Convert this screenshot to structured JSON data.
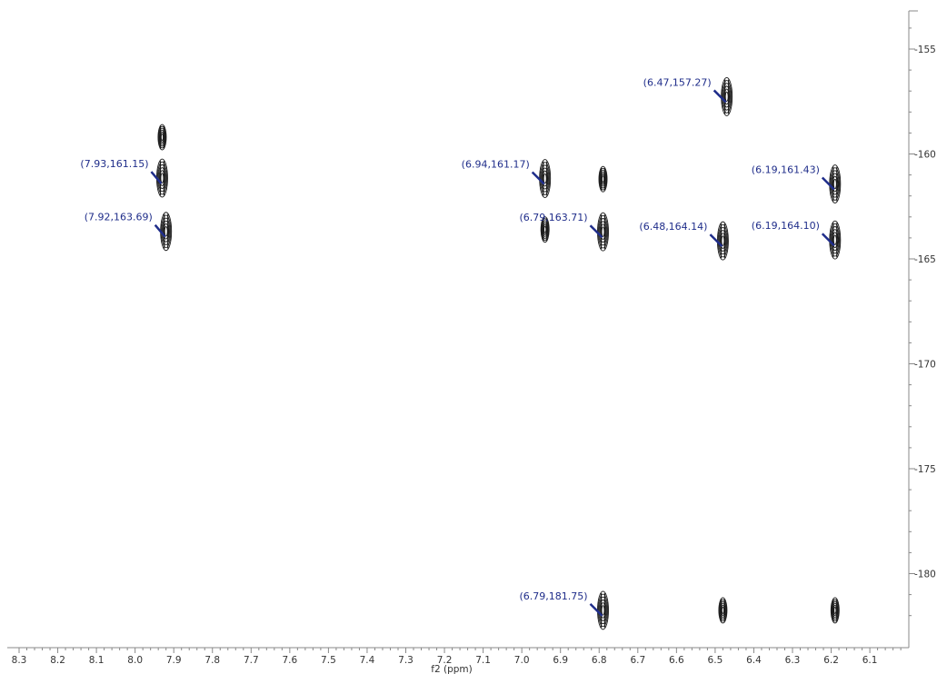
{
  "chart_data": {
    "type": "scatter",
    "plot_kind": "2D NMR contour plot",
    "xlabel": "f2 (ppm)",
    "ylabel": "",
    "x_axis_reversed": true,
    "xlim": [
      8.3,
      6.0
    ],
    "ylim": [
      153.0,
      183.0
    ],
    "x_ticks": [
      "8.3",
      "8.2",
      "8.1",
      "8.0",
      "7.9",
      "7.8",
      "7.7",
      "7.6",
      "7.5",
      "7.4",
      "7.3",
      "7.2",
      "7.1",
      "7.0",
      "6.9",
      "6.8",
      "6.7",
      "6.6",
      "6.5",
      "6.4",
      "6.3",
      "6.2",
      "6.1"
    ],
    "y_ticks": [
      "155",
      "160",
      "165",
      "170",
      "175",
      "180"
    ],
    "grid": false,
    "colors": {
      "contour": "#1a1a1a",
      "label": "#1f2d8a",
      "arrow": "#1f2d8a",
      "axis": "#888888"
    },
    "peaks": [
      {
        "label": "(7.93,161.15)",
        "x": 7.93,
        "y": 161.15
      },
      {
        "label": "(7.92,163.69)",
        "x": 7.92,
        "y": 163.69
      },
      {
        "label": "(6.94,161.17)",
        "x": 6.94,
        "y": 161.17
      },
      {
        "label": "(6.79,163.71)",
        "x": 6.79,
        "y": 163.71
      },
      {
        "label": "(6.47,157.27)",
        "x": 6.47,
        "y": 157.27
      },
      {
        "label": "(6.48,164.14)",
        "x": 6.48,
        "y": 164.14
      },
      {
        "label": "(6.19,161.43)",
        "x": 6.19,
        "y": 161.43
      },
      {
        "label": "(6.19,164.10)",
        "x": 6.19,
        "y": 164.1
      },
      {
        "label": "(6.79,181.75)",
        "x": 6.79,
        "y": 181.75
      }
    ],
    "unlabeled_signals": [
      {
        "x": 6.79,
        "y": 161.2
      },
      {
        "x": 6.48,
        "y": 181.75
      },
      {
        "x": 6.19,
        "y": 181.75
      },
      {
        "x": 7.93,
        "y": 159.2
      },
      {
        "x": 6.94,
        "y": 163.6
      }
    ]
  }
}
